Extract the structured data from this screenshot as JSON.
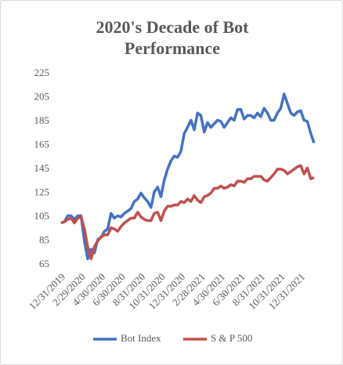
{
  "chart_data": {
    "type": "line",
    "title": "2020's Decade of Bot Performance",
    "categories": [
      "12/31/2019",
      null,
      null,
      null,
      null,
      null,
      "2/29/2020",
      null,
      null,
      null,
      null,
      null,
      "4/30/2020",
      null,
      null,
      null,
      null,
      null,
      "6/30/2020",
      null,
      null,
      null,
      null,
      null,
      "8/31/2020",
      null,
      null,
      null,
      null,
      null,
      "10/31/2020",
      null,
      null,
      null,
      null,
      null,
      "12/31/2020",
      null,
      null,
      null,
      null,
      null,
      "2/28/2021",
      null,
      null,
      null,
      null,
      null,
      "4/30/2021",
      null,
      null,
      null,
      null,
      null,
      "6/30/2021",
      null,
      null,
      null,
      null,
      null,
      "8/31/2021",
      null,
      null,
      null,
      null,
      null,
      "10/31/2021",
      null,
      null,
      null,
      null,
      null,
      "12/31/2021",
      null,
      null,
      null,
      null
    ],
    "series": [
      {
        "name": "Bot Index",
        "color": "#4472c4",
        "values": [
          100,
          101,
          106,
          106,
          103,
          106,
          106,
          85,
          70,
          78,
          75,
          86,
          88,
          93,
          95,
          108,
          104,
          106,
          105,
          108,
          110,
          112,
          118,
          120,
          125,
          121,
          118,
          113,
          126,
          130,
          122,
          136,
          145,
          152,
          156,
          155,
          160,
          175,
          180,
          186,
          178,
          192,
          190,
          176,
          184,
          180,
          183,
          186,
          185,
          180,
          184,
          188,
          186,
          195,
          195,
          187,
          190,
          190,
          188,
          192,
          189,
          196,
          192,
          186,
          186,
          192,
          196,
          208,
          200,
          192,
          190,
          193,
          194,
          186,
          185,
          175,
          167
        ]
      },
      {
        "name": "S & P 500",
        "color": "#c0504d",
        "values": [
          100,
          101,
          103,
          104,
          100,
          104,
          105,
          95,
          80,
          70,
          80,
          85,
          88,
          90,
          90,
          96,
          95,
          93,
          97,
          100,
          102,
          104,
          104,
          109,
          105,
          103,
          102,
          102,
          108,
          109,
          102,
          110,
          114,
          114,
          115,
          115,
          118,
          117,
          120,
          118,
          123,
          119,
          117,
          122,
          123,
          125,
          129,
          129,
          131,
          129,
          130,
          132,
          131,
          135,
          135,
          134,
          137,
          137,
          139,
          139,
          139,
          136,
          135,
          138,
          141,
          145,
          145,
          144,
          141,
          143,
          145,
          147,
          148,
          141,
          146,
          137,
          138
        ]
      }
    ],
    "ylim": [
      65,
      225
    ],
    "yticks": [
      65,
      85,
      105,
      125,
      145,
      165,
      185,
      205,
      225
    ],
    "grid": false
  }
}
